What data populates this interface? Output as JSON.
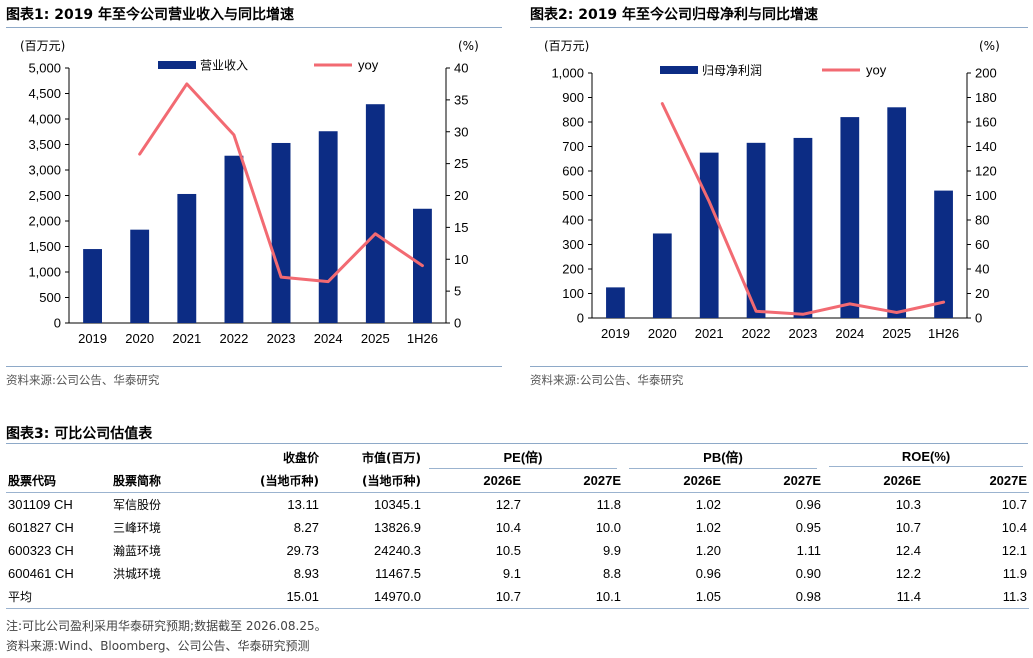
{
  "figure1": {
    "title": "图表1:  2019 年至今公司营业收入与同比增速",
    "left_unit": "(百万元)",
    "right_unit": "(%)",
    "source": "资料来源:公司公告、华泰研究"
  },
  "figure2": {
    "title": "图表2:  2019 年至今公司归母净利与同比增速",
    "left_unit": "(百万元)",
    "right_unit": "(%)",
    "source": "资料来源:公司公告、华泰研究"
  },
  "chart_data": [
    {
      "type": "bar",
      "categories": [
        "2019",
        "2020",
        "2021",
        "2022",
        "2023",
        "2024",
        "2025",
        "1H26"
      ],
      "series": [
        {
          "name": "营业收入",
          "type": "bar",
          "axis": "left",
          "values": [
            1450,
            1830,
            2530,
            3280,
            3530,
            3760,
            4290,
            2240
          ]
        },
        {
          "name": "yoy",
          "type": "line",
          "axis": "right",
          "values": [
            null,
            26.5,
            37.5,
            29.5,
            7.2,
            6.5,
            14.0,
            9.0
          ]
        }
      ],
      "ylim": [
        0,
        5000
      ],
      "y_ticks": [
        "0",
        "500",
        "1,000",
        "1,500",
        "2,000",
        "2,500",
        "3,000",
        "3,500",
        "4,000",
        "4,500",
        "5,000"
      ],
      "y2lim": [
        0,
        40
      ],
      "y2_ticks": [
        "0",
        "5",
        "10",
        "15",
        "20",
        "25",
        "30",
        "35",
        "40"
      ],
      "bar_color": "#0c2c84",
      "line_color": "#f26a72",
      "legend": "top"
    },
    {
      "type": "bar",
      "categories": [
        "2019",
        "2020",
        "2021",
        "2022",
        "2023",
        "2024",
        "2025",
        "1H26"
      ],
      "series": [
        {
          "name": "归母净利润",
          "type": "bar",
          "axis": "left",
          "values": [
            125,
            345,
            675,
            715,
            735,
            820,
            860,
            520
          ]
        },
        {
          "name": "yoy",
          "type": "line",
          "axis": "right",
          "values": [
            null,
            175,
            95,
            5.5,
            3,
            11.5,
            4.5,
            13
          ]
        }
      ],
      "ylim": [
        0,
        1000
      ],
      "y_ticks": [
        "0",
        "100",
        "200",
        "300",
        "400",
        "500",
        "600",
        "700",
        "800",
        "900",
        "1,000"
      ],
      "y2lim": [
        0,
        200
      ],
      "y2_ticks": [
        "0",
        "20",
        "40",
        "60",
        "80",
        "100",
        "120",
        "140",
        "160",
        "180",
        "200"
      ],
      "bar_color": "#0c2c84",
      "line_color": "#f26a72",
      "legend": "top"
    }
  ],
  "table3": {
    "title": "图表3:  可比公司估值表",
    "header_row1": {
      "close": "收盘价",
      "mktcap": "市值(百万)",
      "pe": "PE(倍)",
      "pb": "PB(倍)",
      "roe": "ROE(%)"
    },
    "header_row2": {
      "code": "股票代码",
      "name": "股票简称",
      "close_unit": "(当地币种)",
      "mktcap_unit": "(当地币种)",
      "y1": "2026E",
      "y2": "2027E"
    },
    "rows": [
      {
        "code": "301109 CH",
        "name": "军信股份",
        "close": "13.11",
        "mktcap": "10345.1",
        "pe1": "12.7",
        "pe2": "11.8",
        "pb1": "1.02",
        "pb2": "0.96",
        "roe1": "10.3",
        "roe2": "10.7"
      },
      {
        "code": "601827 CH",
        "name": "三峰环境",
        "close": "8.27",
        "mktcap": "13826.9",
        "pe1": "10.4",
        "pe2": "10.0",
        "pb1": "1.02",
        "pb2": "0.95",
        "roe1": "10.7",
        "roe2": "10.4"
      },
      {
        "code": "600323 CH",
        "name": "瀚蓝环境",
        "close": "29.73",
        "mktcap": "24240.3",
        "pe1": "10.5",
        "pe2": "9.9",
        "pb1": "1.20",
        "pb2": "1.11",
        "roe1": "12.4",
        "roe2": "12.1"
      },
      {
        "code": "600461 CH",
        "name": "洪城环境",
        "close": "8.93",
        "mktcap": "11467.5",
        "pe1": "9.1",
        "pe2": "8.8",
        "pb1": "0.96",
        "pb2": "0.90",
        "roe1": "12.2",
        "roe2": "11.9"
      }
    ],
    "average": {
      "label": "平均",
      "close": "15.01",
      "mktcap": "14970.0",
      "pe1": "10.7",
      "pe2": "10.1",
      "pb1": "1.05",
      "pb2": "0.98",
      "roe1": "11.4",
      "roe2": "11.3"
    },
    "note": "注:可比公司盈利采用华泰研究预期;数据截至 2026.08.25。",
    "source": "资料来源:Wind、Bloomberg、公司公告、华泰研究预测"
  }
}
